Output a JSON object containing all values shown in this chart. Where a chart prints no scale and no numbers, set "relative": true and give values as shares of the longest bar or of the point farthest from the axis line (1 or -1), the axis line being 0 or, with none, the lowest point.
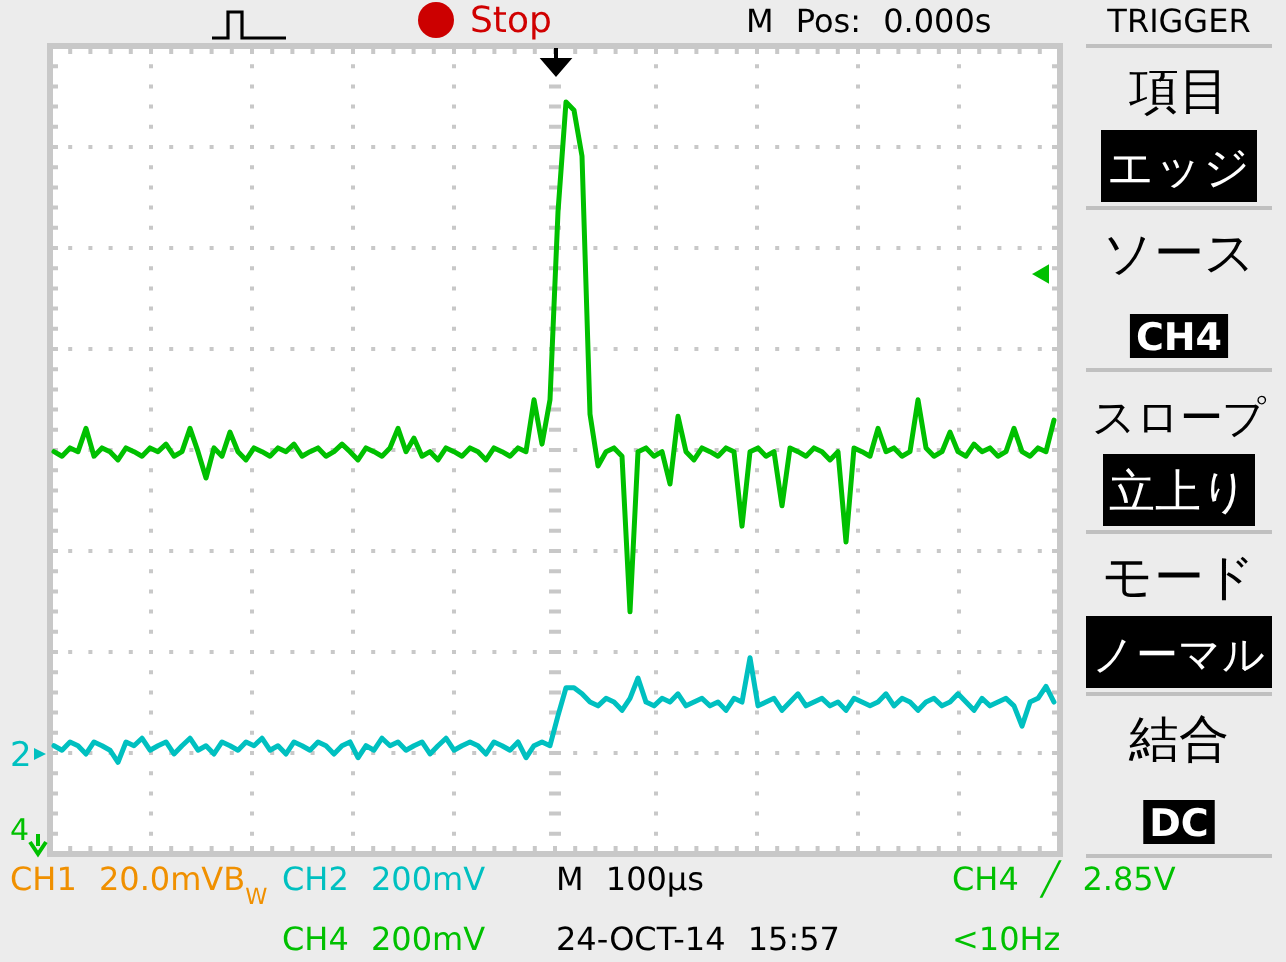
{
  "chart_data": [
    {
      "type": "line",
      "relative": true,
      "grid": true,
      "categories": [
        null,
        null,
        null,
        null,
        null,
        null,
        null,
        null,
        null,
        null,
        null,
        null,
        null,
        null,
        null,
        null,
        null,
        null,
        null,
        null,
        null,
        null,
        null,
        null,
        null,
        null,
        null,
        null,
        null,
        null,
        null,
        null,
        null,
        null,
        null,
        null,
        null,
        null,
        null,
        null,
        null,
        null,
        null,
        null,
        null,
        null,
        null,
        null,
        null,
        null,
        null,
        null,
        null,
        null,
        null,
        null,
        null,
        null,
        null,
        null,
        null,
        null,
        null,
        null,
        null,
        null,
        null,
        null,
        null,
        null,
        null,
        null,
        null,
        null,
        null,
        null,
        null,
        null,
        null,
        null,
        null,
        null,
        null,
        null,
        null,
        null,
        null,
        null,
        null,
        null,
        null,
        null,
        null,
        null,
        null,
        null,
        null,
        null,
        null,
        null,
        null,
        null,
        null,
        null,
        null,
        null,
        null,
        null,
        null,
        null,
        null,
        null,
        null,
        null,
        null,
        null,
        null,
        null,
        null,
        null,
        null,
        null,
        null,
        null,
        null,
        null
      ],
      "series": [
        {
          "color": "#00c000",
          "values": [
            0.535,
            0.529,
            0.54,
            0.535,
            0.566,
            0.529,
            0.54,
            0.535,
            0.524,
            0.54,
            0.535,
            0.529,
            0.54,
            0.535,
            0.545,
            0.529,
            0.535,
            0.566,
            0.535,
            0.5,
            0.54,
            0.529,
            0.561,
            0.535,
            0.524,
            0.54,
            0.535,
            0.529,
            0.54,
            0.535,
            0.545,
            0.529,
            0.535,
            0.54,
            0.529,
            0.535,
            0.545,
            0.535,
            0.524,
            0.54,
            0.535,
            0.529,
            0.54,
            0.566,
            0.535,
            0.553,
            0.529,
            0.535,
            0.524,
            0.54,
            0.535,
            0.529,
            0.54,
            0.535,
            0.524,
            0.54,
            0.535,
            0.529,
            0.54,
            0.535,
            0.604,
            0.545,
            0.604,
            0.854,
            1,
            0.989,
            0.928,
            0.585,
            0.516,
            0.535,
            0.54,
            0.529,
            0.322,
            0.535,
            0.54,
            0.529,
            0.535,
            0.492,
            0.582,
            0.535,
            0.524,
            0.54,
            0.535,
            0.529,
            0.54,
            0.535,
            0.436,
            0.535,
            0.54,
            0.529,
            0.535,
            0.463,
            0.54,
            0.535,
            0.529,
            0.54,
            0.535,
            0.524,
            0.535,
            0.415,
            0.54,
            0.535,
            0.529,
            0.566,
            0.535,
            0.54,
            0.529,
            0.535,
            0.604,
            0.54,
            0.529,
            0.535,
            0.561,
            0.535,
            0.529,
            0.545,
            0.535,
            0.54,
            0.529,
            0.535,
            0.566,
            0.535,
            0.529,
            0.54,
            0.535,
            0.577
          ]
        },
        {
          "color": "#00c0c0",
          "values": [
            0.144,
            0.138,
            0.149,
            0.144,
            0.133,
            0.149,
            0.144,
            0.138,
            0.122,
            0.149,
            0.144,
            0.154,
            0.138,
            0.144,
            0.149,
            0.133,
            0.144,
            0.154,
            0.138,
            0.144,
            0.133,
            0.149,
            0.144,
            0.138,
            0.149,
            0.144,
            0.154,
            0.138,
            0.144,
            0.133,
            0.149,
            0.144,
            0.138,
            0.149,
            0.144,
            0.133,
            0.144,
            0.149,
            0.128,
            0.144,
            0.138,
            0.154,
            0.144,
            0.149,
            0.138,
            0.144,
            0.149,
            0.133,
            0.144,
            0.154,
            0.138,
            0.144,
            0.149,
            0.144,
            0.133,
            0.149,
            0.144,
            0.138,
            0.149,
            0.128,
            0.144,
            0.149,
            0.144,
            0.184,
            0.221,
            0.221,
            0.213,
            0.202,
            0.197,
            0.207,
            0.202,
            0.191,
            0.207,
            0.234,
            0.202,
            0.197,
            0.207,
            0.202,
            0.213,
            0.197,
            0.202,
            0.207,
            0.197,
            0.202,
            0.191,
            0.207,
            0.202,
            0.261,
            0.197,
            0.202,
            0.207,
            0.191,
            0.202,
            0.213,
            0.197,
            0.202,
            0.207,
            0.197,
            0.202,
            0.191,
            0.207,
            0.202,
            0.197,
            0.202,
            0.213,
            0.197,
            0.207,
            0.202,
            0.191,
            0.202,
            0.207,
            0.197,
            0.202,
            0.213,
            0.202,
            0.191,
            0.207,
            0.197,
            0.202,
            0.207,
            0.197,
            0.17,
            0.202,
            0.207,
            0.223,
            0.202
          ]
        }
      ],
      "annotations": [
        "Stop",
        "M Pos: 0.000s",
        "CH1 20.0mVB$_{W}$",
        "CH2 200mV",
        "M 100µs",
        "CH4 ╱ 2.85V",
        "CH4 200mV",
        "24-OCT-14 15:57",
        "<10Hz",
        "2",
        "4"
      ]
    },
    {
      "type": "other",
      "title": "TRIGGER",
      "annotations": [
        "項目",
        "エッジ",
        "ソース",
        "CH4",
        "スロープ",
        "立上り",
        "モード",
        "ノーマル",
        "結合",
        "DC"
      ]
    }
  ]
}
